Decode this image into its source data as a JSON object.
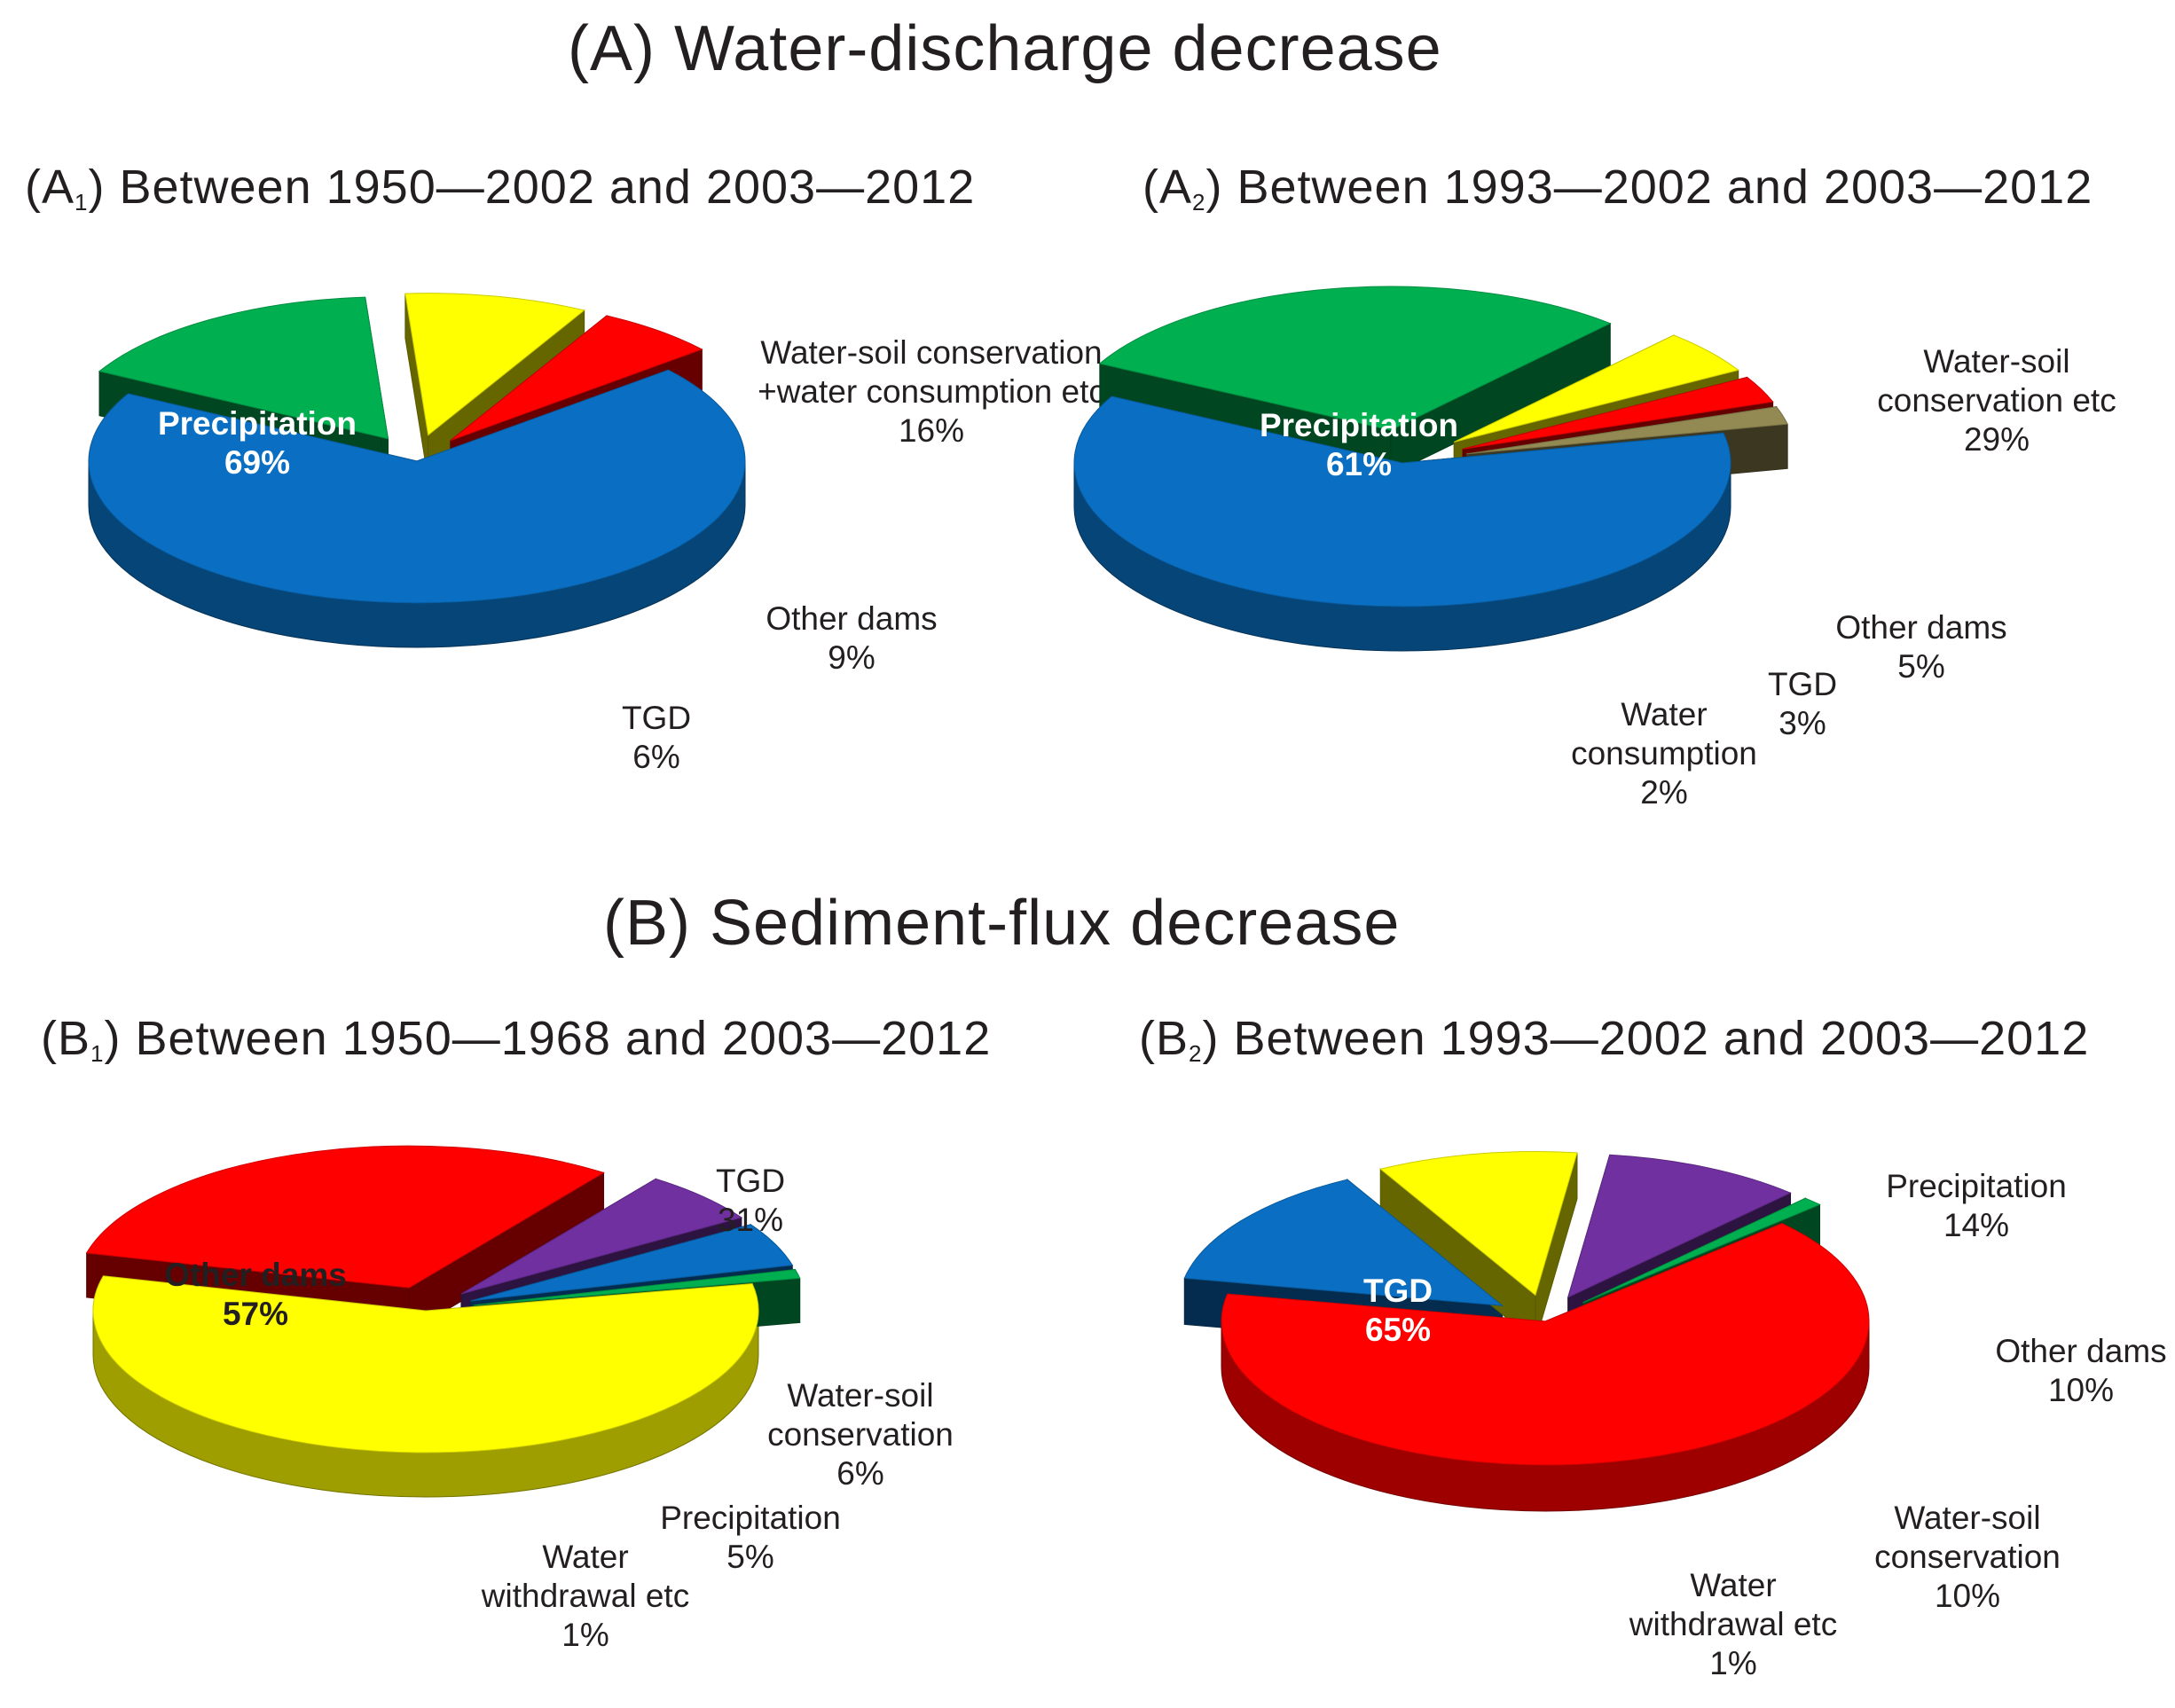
{
  "section_a_title": "(A) Water-discharge decrease",
  "section_b_title": "(B) Sediment-flux decrease",
  "chart_data": [
    {
      "type": "pie",
      "id": "A1",
      "title_prefix": "(A",
      "title_sub": "1",
      "title_rest": ") Between 1950—2002 and 2003—2012",
      "slices": [
        {
          "label": [
            "Precipitation",
            "69%"
          ],
          "value": 69,
          "color": "#0a6fc2",
          "exploded": false,
          "label_inside": true,
          "label_color": "#ffffff"
        },
        {
          "label": [
            "Water-soil conservation",
            "+water consumption etc",
            "16%"
          ],
          "value": 16,
          "color": "#00b050",
          "exploded": true
        },
        {
          "label": [
            "Other dams",
            "9%"
          ],
          "value": 9,
          "color": "#ffff00",
          "exploded": true
        },
        {
          "label": [
            "TGD",
            "6%"
          ],
          "value": 6,
          "color": "#ff0000",
          "exploded": true
        }
      ]
    },
    {
      "type": "pie",
      "id": "A2",
      "title_prefix": "(A",
      "title_sub": "2",
      "title_rest": ") Between 1993—2002 and 2003—2012",
      "slices": [
        {
          "label": [
            "Precipitation",
            "61%"
          ],
          "value": 61,
          "color": "#0a6fc2",
          "exploded": false,
          "label_inside": true,
          "label_color": "#ffffff"
        },
        {
          "label": [
            "Water-soil",
            "conservation etc",
            "29%"
          ],
          "value": 29,
          "color": "#00b050",
          "exploded": true
        },
        {
          "label": [
            "Other dams",
            "5%"
          ],
          "value": 5,
          "color": "#ffff00",
          "exploded": true
        },
        {
          "label": [
            "TGD",
            "3%"
          ],
          "value": 3,
          "color": "#ff0000",
          "exploded": true
        },
        {
          "label": [
            "Water",
            "consumption",
            "2%"
          ],
          "value": 2,
          "color": "#938953",
          "exploded": true
        }
      ]
    },
    {
      "type": "pie",
      "id": "B1",
      "title_prefix": "(B",
      "title_sub": "1",
      "title_rest": ") Between 1950—1968 and 2003—2012",
      "slices": [
        {
          "label": [
            "Other dams",
            "57%"
          ],
          "value": 57,
          "color": "#ffff00",
          "exploded": false,
          "label_inside": true,
          "label_color": "#231f20"
        },
        {
          "label": [
            "TGD",
            "31%"
          ],
          "value": 31,
          "color": "#ff0000",
          "exploded": true
        },
        {
          "label": [
            "Water-soil",
            "conservation",
            "6%"
          ],
          "value": 6,
          "color": "#7030a0",
          "exploded": true
        },
        {
          "label": [
            "Precipitation",
            "5%"
          ],
          "value": 5,
          "color": "#0a6fc2",
          "exploded": true
        },
        {
          "label": [
            "Water",
            "withdrawal etc",
            "1%"
          ],
          "value": 1,
          "color": "#00b050",
          "exploded": true
        }
      ]
    },
    {
      "type": "pie",
      "id": "B2",
      "title_prefix": "(B",
      "title_sub": "2",
      "title_rest": ") Between 1993—2002 and 2003—2012",
      "slices": [
        {
          "label": [
            "TGD",
            "65%"
          ],
          "value": 65,
          "color": "#ff0000",
          "exploded": false,
          "label_inside": true,
          "label_color": "#ffffff"
        },
        {
          "label": [
            "Precipitation",
            "14%"
          ],
          "value": 14,
          "color": "#0a6fc2",
          "exploded": true
        },
        {
          "label": [
            "Other dams",
            "10%"
          ],
          "value": 10,
          "color": "#ffff00",
          "exploded": true
        },
        {
          "label": [
            "Water-soil",
            "conservation",
            "10%"
          ],
          "value": 10,
          "color": "#7030a0",
          "exploded": true
        },
        {
          "label": [
            "Water",
            "withdrawal etc",
            "1%"
          ],
          "value": 1,
          "color": "#00b050",
          "exploded": true
        }
      ]
    }
  ]
}
